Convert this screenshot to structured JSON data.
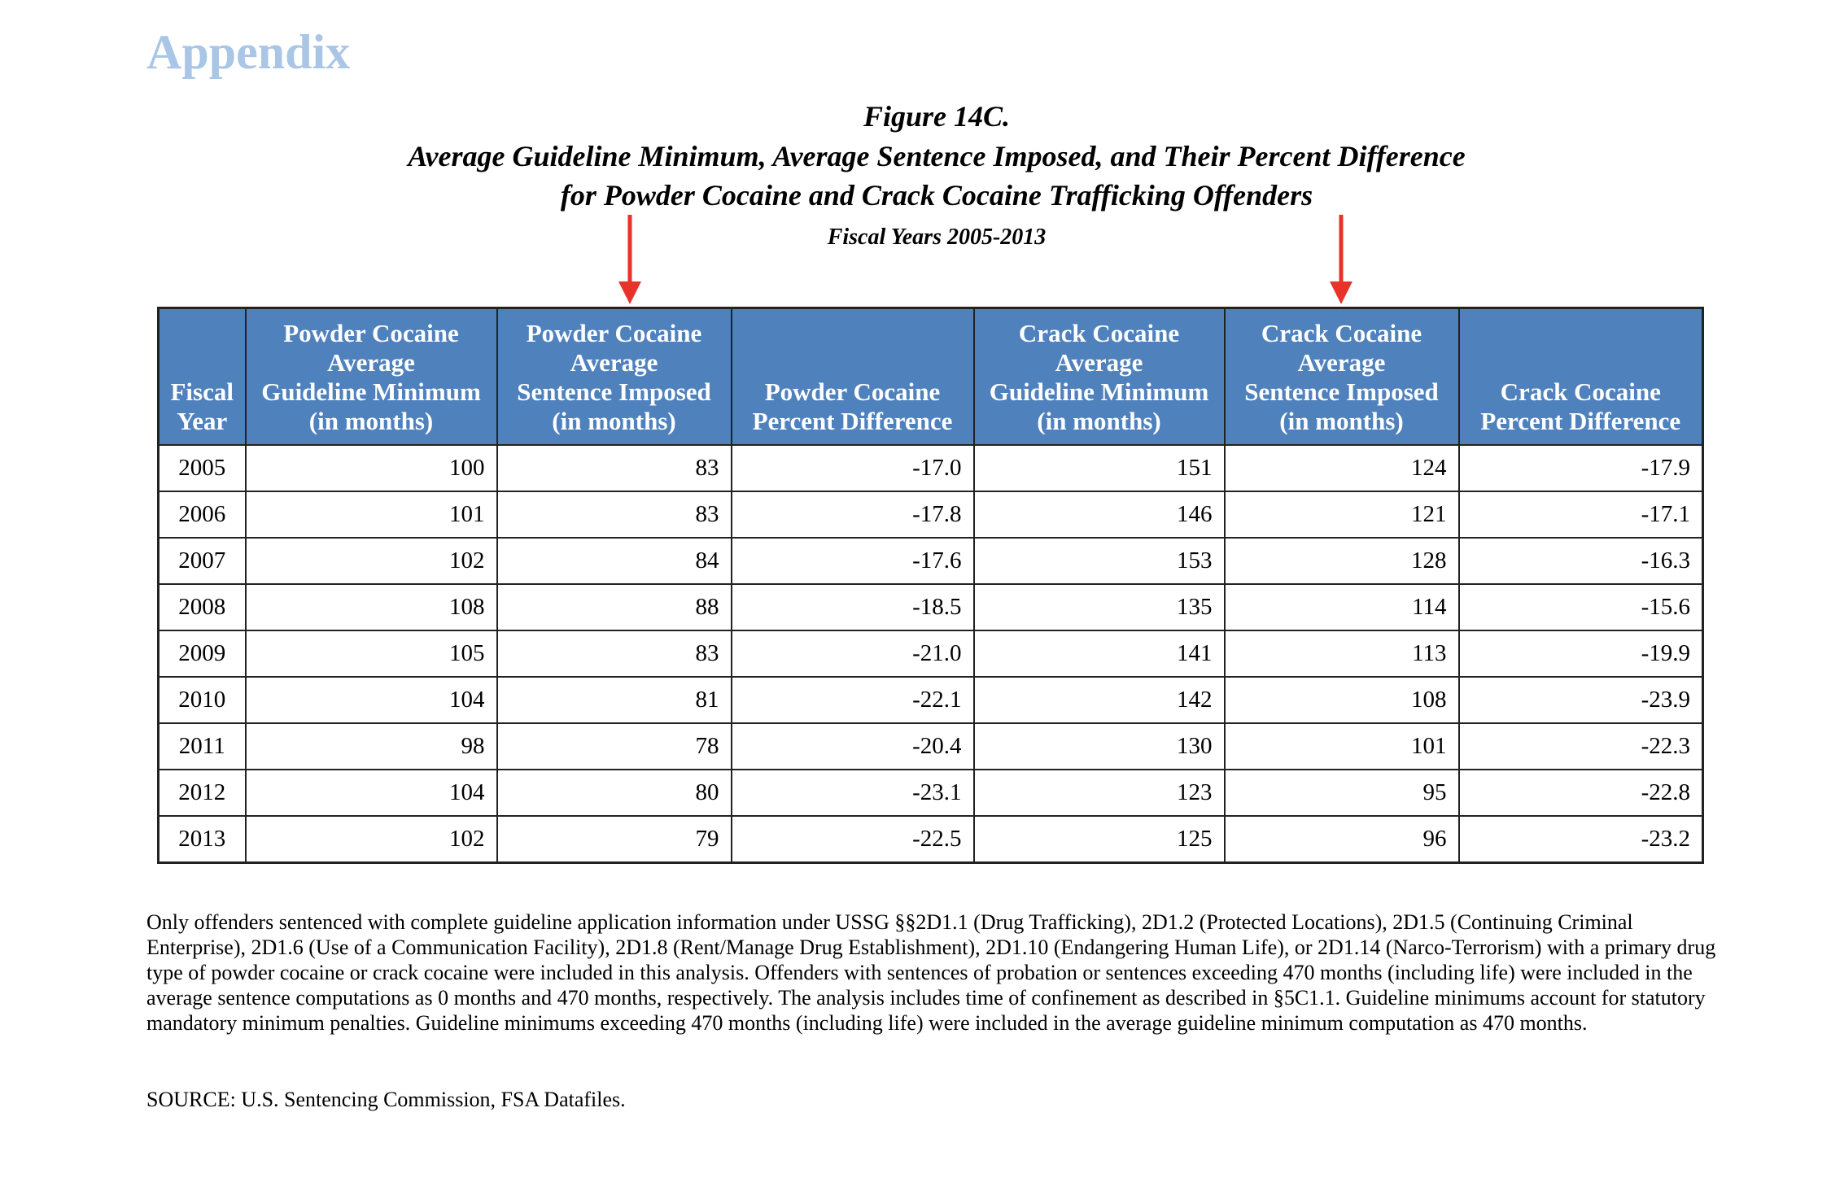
{
  "header": {
    "section": "Appendix",
    "figure": "Figure 14C.",
    "title_lines": [
      "Average Guideline Minimum, Average Sentence Imposed, and Their Percent Difference",
      "for Powder Cocaine and Crack Cocaine Trafficking Offenders"
    ],
    "subtitle": "Fiscal Years 2005-2013"
  },
  "table": {
    "columns": [
      [
        "Fiscal",
        "Year"
      ],
      [
        "Powder Cocaine",
        "Average",
        "Guideline Minimum",
        "(in months)"
      ],
      [
        "Powder Cocaine",
        "Average",
        "Sentence Imposed",
        "(in months)"
      ],
      [
        "Powder Cocaine",
        "Percent Difference"
      ],
      [
        "Crack Cocaine",
        "Average",
        "Guideline Minimum",
        "(in months)"
      ],
      [
        "Crack Cocaine",
        "Average",
        "Sentence Imposed",
        "(in months)"
      ],
      [
        "Crack Cocaine",
        "Percent Difference"
      ]
    ],
    "rows": [
      [
        "2005",
        "100",
        "83",
        "-17.0",
        "151",
        "124",
        "-17.9"
      ],
      [
        "2006",
        "101",
        "83",
        "-17.8",
        "146",
        "121",
        "-17.1"
      ],
      [
        "2007",
        "102",
        "84",
        "-17.6",
        "153",
        "128",
        "-16.3"
      ],
      [
        "2008",
        "108",
        "88",
        "-18.5",
        "135",
        "114",
        "-15.6"
      ],
      [
        "2009",
        "105",
        "83",
        "-21.0",
        "141",
        "113",
        "-19.9"
      ],
      [
        "2010",
        "104",
        "81",
        "-22.1",
        "142",
        "108",
        "-23.9"
      ],
      [
        "2011",
        "98",
        "78",
        "-20.4",
        "130",
        "101",
        "-22.3"
      ],
      [
        "2012",
        "104",
        "80",
        "-23.1",
        "123",
        "95",
        "-22.8"
      ],
      [
        "2013",
        "102",
        "79",
        "-22.5",
        "125",
        "96",
        "-23.2"
      ]
    ]
  },
  "notes": "Only offenders sentenced with complete guideline application information under USSG §§2D1.1 (Drug Trafficking), 2D1.2 (Protected Locations), 2D1.5 (Continuing Criminal Enterprise), 2D1.6 (Use of a Communication Facility), 2D1.8 (Rent/Manage Drug Establishment), 2D1.10 (Endangering Human Life), or 2D1.14 (Narco-Terrorism) with a primary drug type of powder cocaine or crack cocaine were included in this analysis. Offenders with sentences of probation or sentences exceeding 470 months (including life) were included in the average sentence computations as 0 months and 470 months, respectively. The analysis includes time of confinement as described in §5C1.1. Guideline minimums account for statutory mandatory minimum penalties. Guideline minimums exceeding 470 months (including life) were included in the average guideline minimum computation as 470 months.",
  "source": "SOURCE: U.S. Sentencing Commission, FSA Datafiles."
}
